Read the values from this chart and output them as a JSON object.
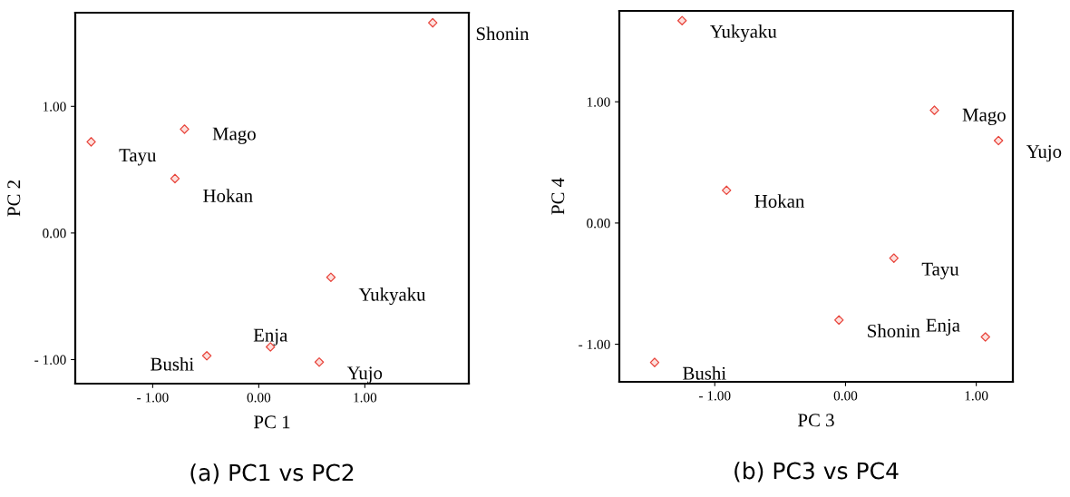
{
  "chart_data": [
    {
      "type": "scatter",
      "title": "(a) PC1 vs PC2",
      "xlabel": "PC 1",
      "ylabel": "PC 2",
      "marker": "diamond",
      "grid": false,
      "xlim": [
        -1.73,
        1.98
      ],
      "ylim": [
        -1.19,
        1.74
      ],
      "xticks": [
        {
          "value": -1,
          "label": "- 1.00"
        },
        {
          "value": 0,
          "label": "0.00"
        },
        {
          "value": 1,
          "label": "1.00"
        }
      ],
      "yticks": [
        {
          "value": -1,
          "label": "- 1.00"
        },
        {
          "value": 0,
          "label": "0.00"
        },
        {
          "value": 1,
          "label": "1.00"
        }
      ],
      "series": [
        {
          "color": "#e8453c",
          "x": [
            1.64,
            -1.58,
            -0.7,
            -0.79,
            0.68,
            0.11,
            -0.49,
            0.57
          ],
          "values": [
            1.66,
            0.72,
            0.82,
            0.43,
            -0.35,
            -0.9,
            -0.97,
            -1.02
          ]
        }
      ],
      "annotations": [
        {
          "text": "Shonin",
          "x": 1.64,
          "y": 1.66
        },
        {
          "text": "Tayu",
          "x": -1.58,
          "y": 0.72
        },
        {
          "text": "Mago",
          "x": -0.7,
          "y": 0.82
        },
        {
          "text": "Hokan",
          "x": -0.79,
          "y": 0.43
        },
        {
          "text": "Yukyaku",
          "x": 0.68,
          "y": -0.35
        },
        {
          "text": "Enja",
          "x": 0.11,
          "y": -0.9
        },
        {
          "text": "Bushi",
          "x": -0.49,
          "y": -0.97
        },
        {
          "text": "Yujo",
          "x": 0.57,
          "y": -1.02
        }
      ]
    },
    {
      "type": "scatter",
      "title": "(b) PC3 vs PC4",
      "xlabel": "PC 3",
      "ylabel": "PC 4",
      "marker": "diamond",
      "grid": false,
      "xlim": [
        -1.73,
        1.28
      ],
      "ylim": [
        -1.31,
        1.75
      ],
      "xticks": [
        {
          "value": -1,
          "label": "- 1.00"
        },
        {
          "value": 0,
          "label": "0.00"
        },
        {
          "value": 1,
          "label": "1.00"
        }
      ],
      "yticks": [
        {
          "value": -1,
          "label": "- 1.00"
        },
        {
          "value": 0,
          "label": "0.00"
        },
        {
          "value": 1,
          "label": "1.00"
        }
      ],
      "series": [
        {
          "color": "#e8453c",
          "x": [
            -1.25,
            0.68,
            1.17,
            -0.91,
            0.37,
            -0.05,
            1.07,
            -1.46
          ],
          "values": [
            1.67,
            0.93,
            0.68,
            0.27,
            -0.29,
            -0.8,
            -0.94,
            -1.15
          ]
        }
      ],
      "annotations": [
        {
          "text": "Yukyaku",
          "x": -1.25,
          "y": 1.67
        },
        {
          "text": "Mago",
          "x": 0.68,
          "y": 0.93
        },
        {
          "text": "Yujo",
          "x": 1.17,
          "y": 0.68
        },
        {
          "text": "Hokan",
          "x": -0.91,
          "y": 0.27
        },
        {
          "text": "Tayu",
          "x": 0.37,
          "y": -0.29
        },
        {
          "text": "Shonin",
          "x": -0.05,
          "y": -0.8
        },
        {
          "text": "Enja",
          "x": 1.07,
          "y": -0.94
        },
        {
          "text": "Bushi",
          "x": -1.46,
          "y": -1.15
        }
      ]
    }
  ]
}
